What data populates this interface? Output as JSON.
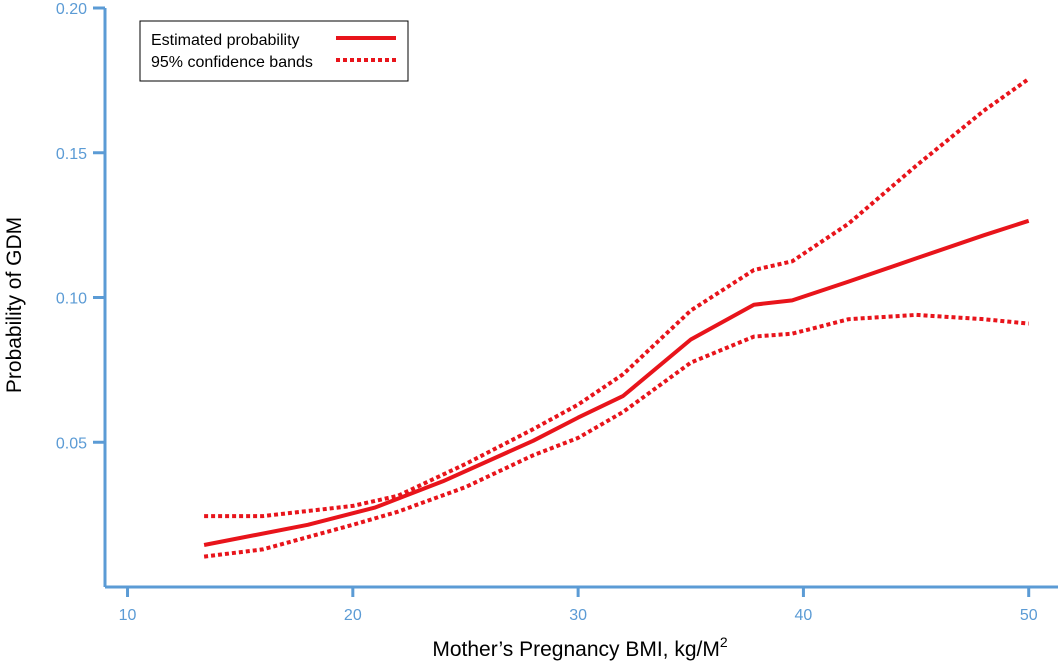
{
  "chart_data": {
    "type": "line",
    "title": "",
    "xlabel": "Mother’s Pregnancy BMI, kg/M",
    "xlabel_superscript": "2",
    "ylabel": "Probability of GDM",
    "xlim": [
      9,
      51.3
    ],
    "ylim": [
      0,
      0.2
    ],
    "x_ticks": [
      10,
      20,
      30,
      40,
      50
    ],
    "x_tick_labels": [
      "10",
      "20",
      "30",
      "40",
      "50"
    ],
    "y_ticks": [
      0.05,
      0.1,
      0.15,
      0.2
    ],
    "y_tick_labels": [
      "0.05",
      "0.10",
      "0.15",
      "0.20"
    ],
    "legend_position": "top-left",
    "series": [
      {
        "name": "Estimated probability",
        "style": "solid",
        "color": "#e8141b",
        "x": [
          13.4,
          18,
          21,
          24,
          28,
          30,
          32,
          35,
          37.8,
          39.5,
          42,
          45,
          48,
          50
        ],
        "y": [
          0.0145,
          0.0215,
          0.0275,
          0.0365,
          0.0505,
          0.0585,
          0.066,
          0.0855,
          0.0975,
          0.099,
          0.1055,
          0.1135,
          0.1215,
          0.1265
        ]
      },
      {
        "name": "95% confidence bands",
        "style": "dotted",
        "color": "#e8141b",
        "x": [
          13.4,
          16,
          20,
          22,
          25,
          28,
          30,
          32,
          35,
          37.8,
          39.5,
          42,
          45,
          48,
          50
        ],
        "y": [
          0.0245,
          0.0245,
          0.028,
          0.0315,
          0.0425,
          0.0545,
          0.063,
          0.0735,
          0.0955,
          0.1095,
          0.1125,
          0.1255,
          0.1455,
          0.1645,
          0.1755
        ]
      },
      {
        "name": "",
        "style": "dotted",
        "color": "#e8141b",
        "x": [
          13.4,
          16,
          20,
          22,
          25,
          28,
          30,
          32,
          35,
          37.8,
          39.5,
          42,
          45,
          48,
          50
        ],
        "y": [
          0.0105,
          0.013,
          0.0215,
          0.026,
          0.0345,
          0.0455,
          0.0515,
          0.0605,
          0.0775,
          0.0865,
          0.0875,
          0.0925,
          0.094,
          0.0925,
          0.091
        ]
      }
    ]
  },
  "colors": {
    "axis": "#5b9bd5",
    "series": "#e8141b"
  }
}
